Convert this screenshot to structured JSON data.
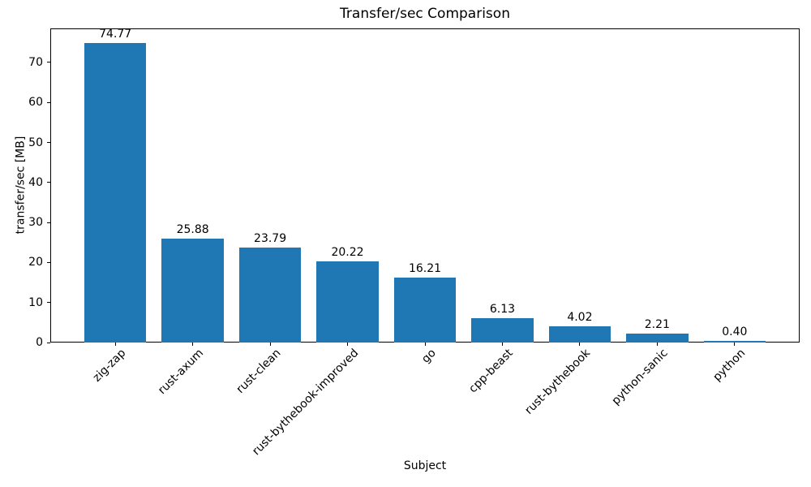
{
  "chart_data": {
    "type": "bar",
    "title": "Transfer/sec Comparison",
    "xlabel": "Subject",
    "ylabel": "transfer/sec [MB]",
    "categories": [
      "zig-zap",
      "rust-axum",
      "rust-clean",
      "rust-bythebook-improved",
      "go",
      "cpp-beast",
      "rust-bythebook",
      "python-sanic",
      "python"
    ],
    "values": [
      74.77,
      25.88,
      23.79,
      20.22,
      16.21,
      6.13,
      4.02,
      2.21,
      0.4
    ],
    "value_labels": [
      "74.77",
      "25.88",
      "23.79",
      "20.22",
      "16.21",
      "6.13",
      "4.02",
      "2.21",
      "0.40"
    ],
    "yticks": [
      0,
      10,
      20,
      30,
      40,
      50,
      60,
      70
    ],
    "ylim": [
      0,
      78.51
    ],
    "bar_color": "#1f77b4",
    "grid": false,
    "legend": null,
    "x_tick_label_rotation_deg": 45
  }
}
